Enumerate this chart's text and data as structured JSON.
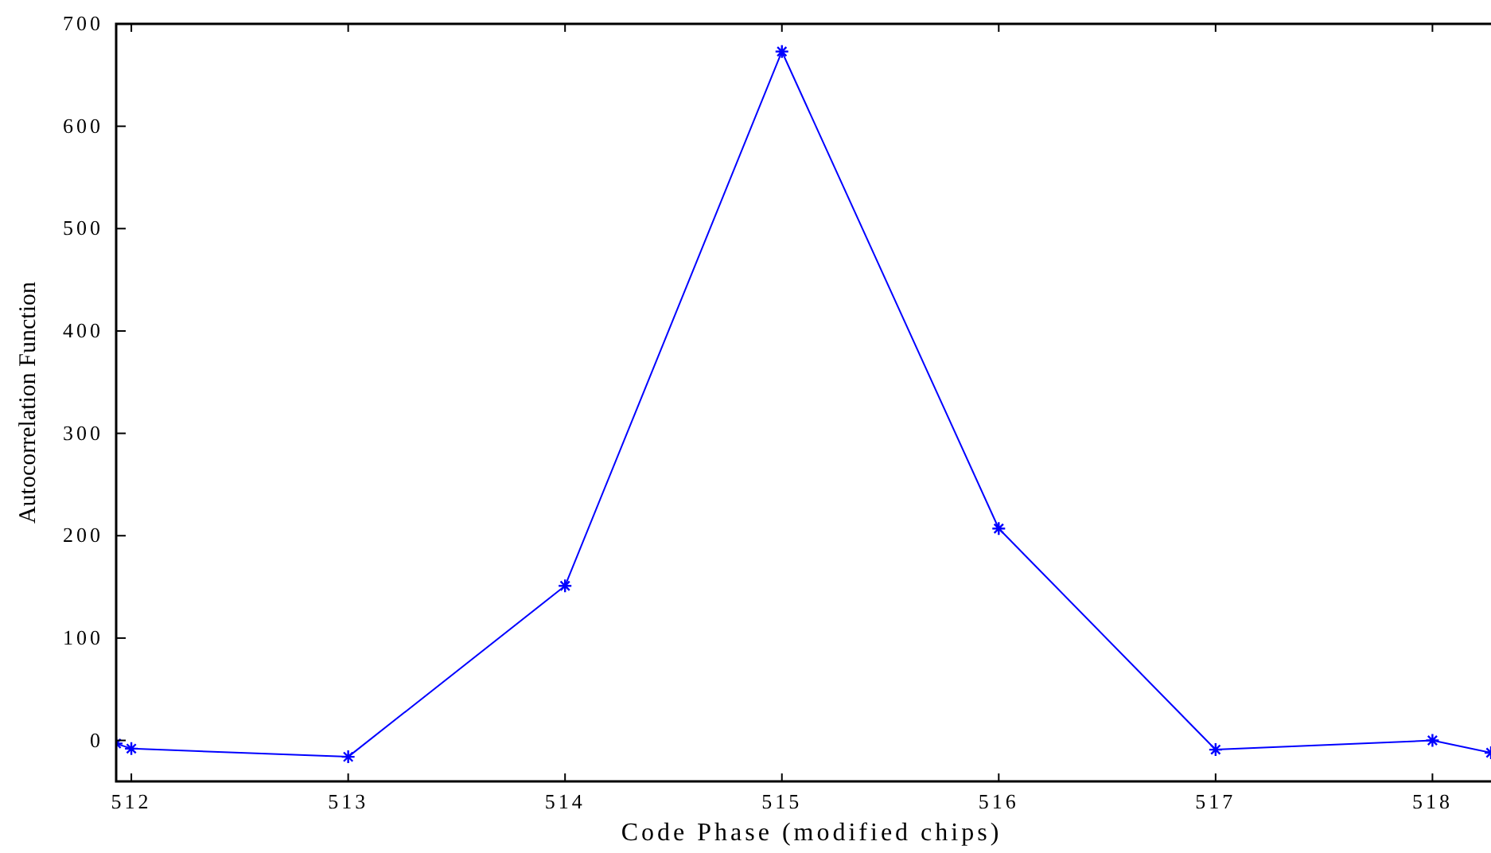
{
  "chart_data": {
    "type": "line",
    "xlabel": "Code Phase  (modified chips)",
    "ylabel": "Autocorrelation Function",
    "x": [
      511.93,
      512,
      513,
      514,
      515,
      516,
      517,
      518,
      518.27
    ],
    "series": [
      {
        "color": "#0000ff",
        "values": [
          -3,
          -8,
          -16,
          151,
          673,
          207,
          -9,
          0,
          -12
        ]
      }
    ],
    "xlim": [
      511.93,
      518.27
    ],
    "xticks": [
      512,
      513,
      514,
      515,
      516,
      517,
      518
    ],
    "ylim": [
      -40,
      700
    ],
    "yticks": [
      0,
      100,
      200,
      300,
      400,
      500,
      600,
      700
    ],
    "grid": false,
    "marker": "cross",
    "line_style": "solid"
  }
}
